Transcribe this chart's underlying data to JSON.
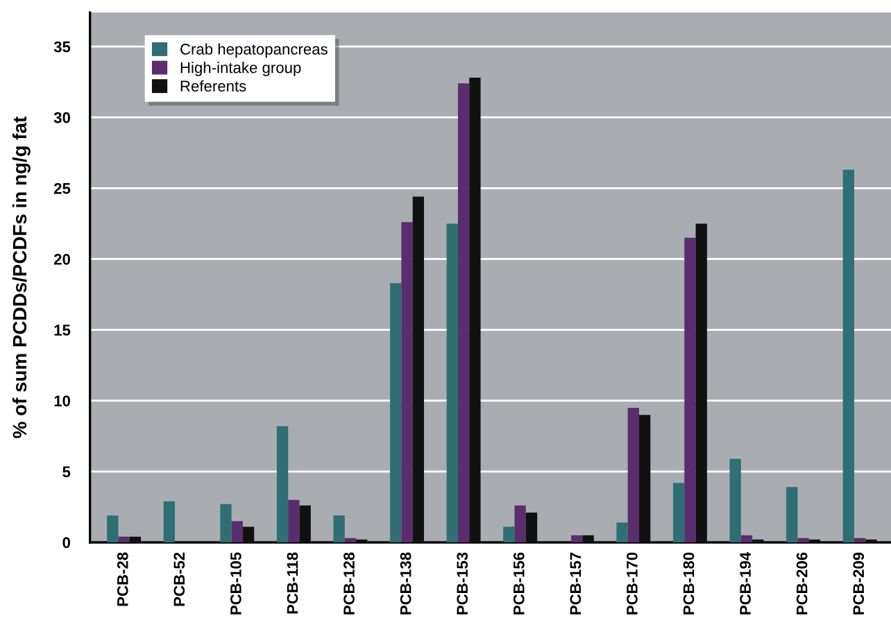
{
  "chart_data": {
    "type": "bar",
    "ylabel": "% of sum PCDDs/PCDFs in ng/g fat",
    "categories": [
      "PCB-28",
      "PCB-52",
      "PCB-105",
      "PCB-118",
      "PCB-128",
      "PCB-138",
      "PCB-153",
      "PCB-156",
      "PCB-157",
      "PCB-170",
      "PCB-180",
      "PCB-194",
      "PCB-206",
      "PCB-209"
    ],
    "series": [
      {
        "name": "Crab hepatopancreas",
        "color": "#2f6f74",
        "values": [
          1.9,
          2.9,
          2.7,
          8.2,
          1.9,
          18.3,
          22.5,
          1.1,
          0,
          1.4,
          4.2,
          5.9,
          3.9,
          26.3
        ]
      },
      {
        "name": "High-intake group",
        "color": "#5a2d6e",
        "values": [
          0.4,
          0,
          1.5,
          3.0,
          0.3,
          22.6,
          32.4,
          2.6,
          0.5,
          9.5,
          21.5,
          0.5,
          0.3,
          0.3
        ]
      },
      {
        "name": "Referents",
        "color": "#111111",
        "values": [
          0.4,
          0,
          1.1,
          2.6,
          0.2,
          24.4,
          32.8,
          2.1,
          0.5,
          9.0,
          22.5,
          0.2,
          0.2,
          0.2
        ]
      }
    ],
    "ylim": [
      0,
      37.4
    ],
    "yticks": [
      0,
      5,
      10,
      15,
      20,
      25,
      30,
      35
    ],
    "grid": "y",
    "legend": "top left"
  }
}
